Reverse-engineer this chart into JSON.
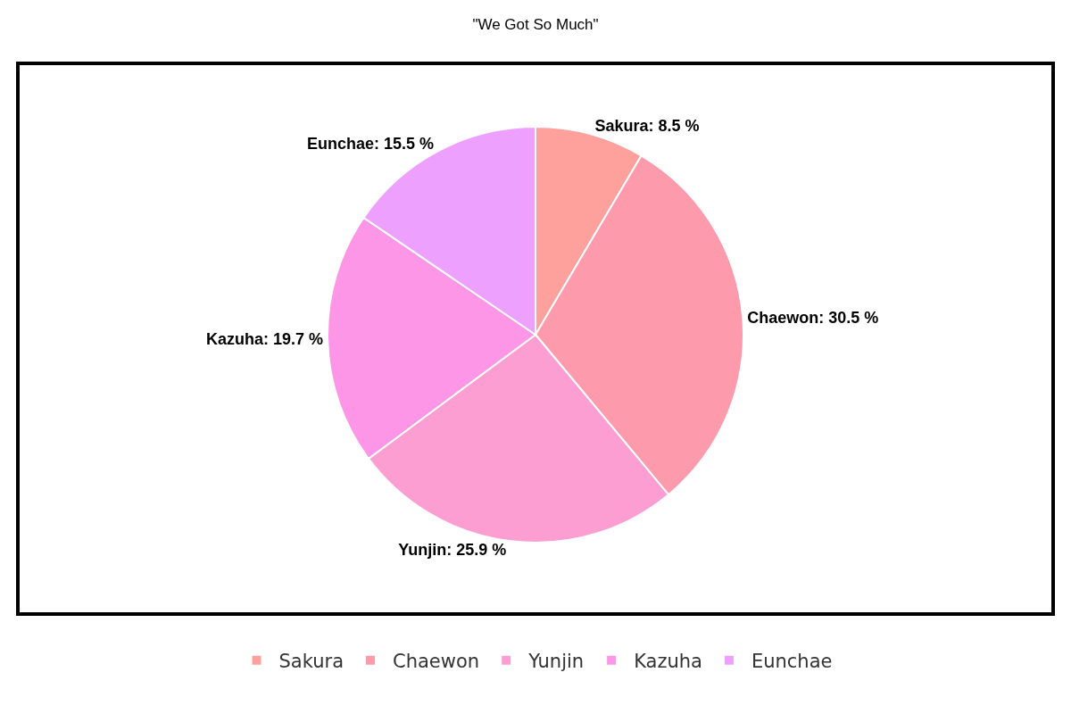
{
  "chart_data": {
    "type": "pie",
    "title": "\"We Got So Much\"",
    "categories": [
      "Sakura",
      "Chaewon",
      "Yunjin",
      "Kazuha",
      "Eunchae"
    ],
    "values": [
      8.5,
      30.5,
      25.9,
      19.7,
      15.5
    ],
    "colors": [
      "#fea09c",
      "#fd9aab",
      "#fd9ed3",
      "#fd96e6",
      "#eda0fe"
    ],
    "value_labels": [
      "Sakura: 8.5 %",
      "Chaewon: 30.5 %",
      "Yunjin: 25.9 %",
      "Kazuha: 19.7 %",
      "Eunchae: 15.5 %"
    ],
    "legend": "bottom"
  }
}
